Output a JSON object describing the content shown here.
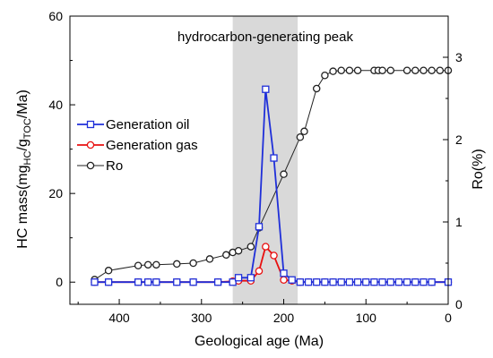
{
  "chart_data": {
    "type": "line",
    "title": "",
    "annotation": "hydrocarbon-generating peak",
    "highlight_band_x": [
      262,
      183
    ],
    "xlabel": "Geological age (Ma)",
    "ylabel_left": {
      "prefix": "HC mass(mg",
      "sub1": "HC",
      "mid": "/g",
      "sub2": "TOC",
      "suffix": "/Ma)"
    },
    "ylabel_right": "Ro(%)",
    "xlim": [
      460,
      0
    ],
    "ylim_left": [
      -5,
      60
    ],
    "ylim_right": [
      0,
      3.5
    ],
    "x_ticks": [
      "400",
      "300",
      "200",
      "100",
      "0"
    ],
    "x_tick_values": [
      400,
      300,
      200,
      100,
      0
    ],
    "y_ticks_left": [
      "0",
      "20",
      "40",
      "60"
    ],
    "y_tick_values_left": [
      0,
      20,
      40,
      60
    ],
    "y_ticks_right": [
      "0",
      "1",
      "2",
      "3"
    ],
    "y_tick_values_right": [
      0,
      1,
      2,
      3
    ],
    "legend_position": "left",
    "series": [
      {
        "name": "Generation oil",
        "axis": "left",
        "color": "#1f2fd9",
        "marker": "square",
        "x": [
          430,
          413,
          377,
          365,
          355,
          330,
          310,
          280,
          262,
          255,
          240,
          230,
          222,
          212,
          200,
          190,
          180,
          170,
          160,
          150,
          140,
          130,
          120,
          110,
          100,
          90,
          80,
          70,
          60,
          50,
          40,
          30,
          20,
          0
        ],
        "y": [
          0,
          0,
          0,
          0,
          0,
          0,
          0,
          0,
          0,
          1,
          1,
          12.5,
          43.5,
          28,
          2,
          0.5,
          0,
          0,
          0,
          0,
          0,
          0,
          0,
          0,
          0,
          0,
          0,
          0,
          0,
          0,
          0,
          0,
          0,
          0
        ]
      },
      {
        "name": "Generation gas",
        "axis": "left",
        "color": "#e81010",
        "marker": "circle",
        "x": [
          430,
          413,
          377,
          365,
          355,
          330,
          310,
          280,
          262,
          255,
          240,
          230,
          222,
          212,
          200,
          190,
          180,
          170,
          160,
          150,
          140,
          130,
          120,
          110,
          100,
          90,
          80,
          70,
          60,
          50,
          40,
          30,
          20,
          0
        ],
        "y": [
          0,
          0,
          0,
          0,
          0,
          0,
          0,
          0,
          0.2,
          0.3,
          0.3,
          2.5,
          8,
          6,
          0.5,
          0.3,
          0,
          0,
          0,
          0,
          0,
          0,
          0,
          0,
          0,
          0,
          0,
          0,
          0,
          0,
          0,
          0,
          0,
          0
        ]
      },
      {
        "name": "Ro",
        "axis": "right",
        "color": "#222222",
        "marker": "circle-open",
        "x": [
          430,
          413,
          377,
          365,
          355,
          330,
          310,
          290,
          270,
          262,
          255,
          240,
          230,
          200,
          180,
          175,
          160,
          150,
          140,
          130,
          120,
          110,
          90,
          85,
          80,
          70,
          50,
          40,
          30,
          20,
          10,
          0
        ],
        "y": [
          0.3,
          0.41,
          0.47,
          0.48,
          0.48,
          0.49,
          0.5,
          0.55,
          0.6,
          0.63,
          0.65,
          0.7,
          0.93,
          1.58,
          2.03,
          2.1,
          2.62,
          2.78,
          2.83,
          2.84,
          2.84,
          2.84,
          2.84,
          2.84,
          2.84,
          2.84,
          2.84,
          2.84,
          2.84,
          2.84,
          2.84,
          2.84
        ]
      }
    ]
  }
}
